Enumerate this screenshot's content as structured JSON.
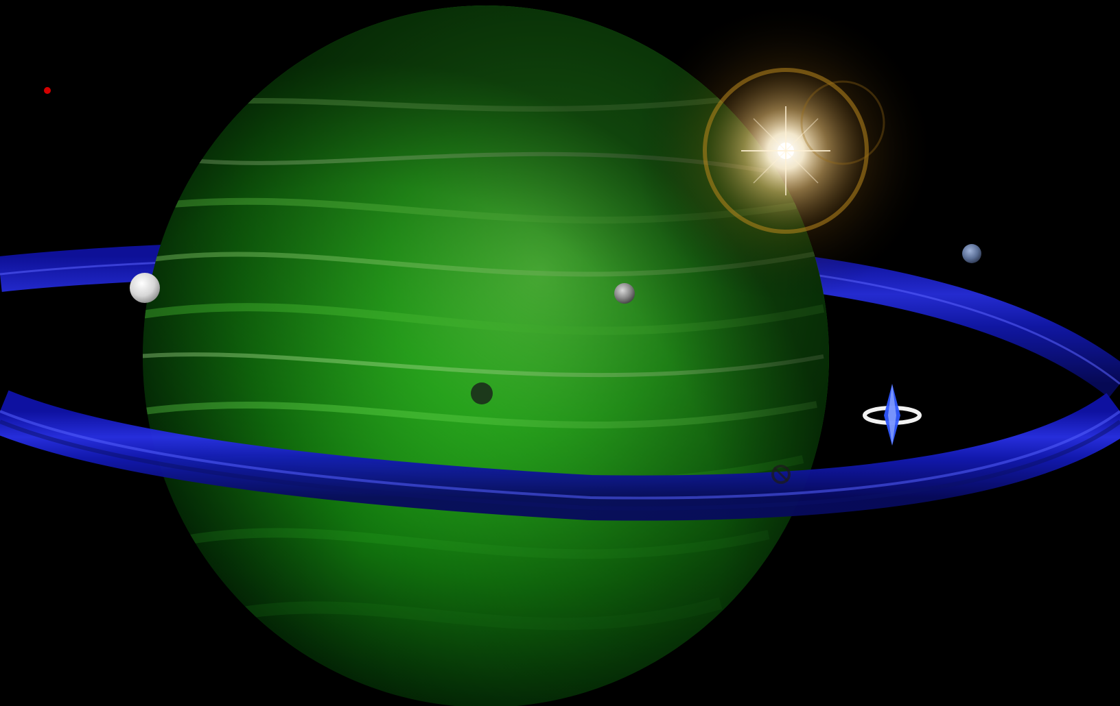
{
  "scene": {
    "background_color": "#000000",
    "planet_color": "#22c51a",
    "planet_dark_color": "#04300a",
    "planet_highlight_color": "#7dff5a",
    "ring_color": "#1c22d6",
    "ring_light_color": "#4a58ff",
    "sun_color": "#fff6dc",
    "lens_flare_color": "#c08a1e",
    "moon_colors": [
      "#f0f0f0",
      "#9a9a9a",
      "#5a6a8c",
      "#2a3b2a"
    ],
    "distant_star_color": "#c00000",
    "satellite_colors": [
      "#ffffff",
      "#3a5cff"
    ]
  }
}
